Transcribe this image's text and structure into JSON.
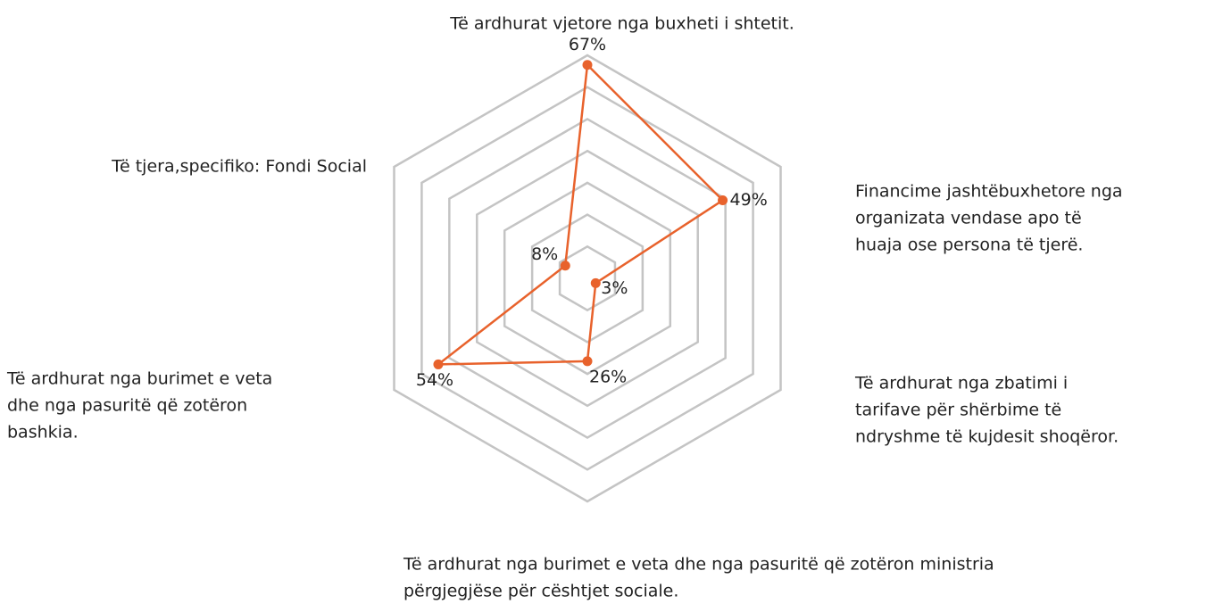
{
  "chart_data": {
    "type": "radar",
    "categories": [
      [
        "Të ardhurat vjetore nga buxheti i shtetit."
      ],
      [
        "Financime jashtëbuxhetore nga",
        "organizata vendase apo të",
        "huaja ose persona të tjerë."
      ],
      [
        "Të ardhurat nga zbatimi i",
        "tarifave për shërbime të",
        "ndryshme të kujdesit shoqëror."
      ],
      [
        "Të ardhurat nga burimet e veta dhe nga pasuritë që zotëron ministria",
        "përgjegjëse për cështjet sociale."
      ],
      [
        "Të ardhurat nga burimet e veta",
        "dhe nga pasuritë që zotëron",
        "bashkia."
      ],
      [
        "Të tjera,specifiko: Fondi Social"
      ]
    ],
    "values": [
      67,
      49,
      3,
      26,
      54,
      8
    ],
    "value_labels": [
      "67%",
      "49%",
      "3%",
      "26%",
      "54%",
      "8%"
    ],
    "color": "#e8622c",
    "ylim": [
      0,
      70
    ],
    "yticks": [
      10,
      20,
      30,
      40,
      50,
      60,
      70
    ],
    "grid": true
  }
}
